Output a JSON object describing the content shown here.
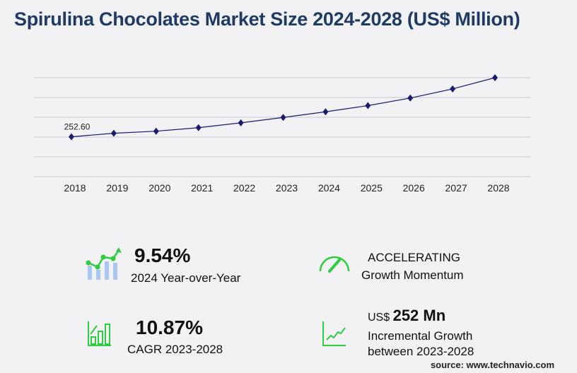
{
  "title": "Spirulina Chocolates Market Size 2024-2028 (US$ Million)",
  "chart_data": {
    "type": "line",
    "categories": [
      "2018",
      "2019",
      "2020",
      "2021",
      "2022",
      "2023",
      "2024",
      "2025",
      "2026",
      "2027",
      "2028"
    ],
    "values": [
      252.6,
      275,
      288,
      310,
      341,
      375,
      411,
      450,
      498,
      556,
      627
    ],
    "data_labels": [
      "252.60",
      "",
      "",
      "",
      "",
      "",
      "",
      "",
      "",
      "",
      ""
    ],
    "ylim": [
      0,
      627
    ],
    "grid": true,
    "line_color": "#1a1a6e",
    "marker": "diamond"
  },
  "kpis": {
    "yoy_value": "9.54%",
    "yoy_label": "2024 Year-over-Year",
    "momentum_value": "ACCELERATING",
    "momentum_label": "Growth Momentum",
    "cagr_value": "10.87%",
    "cagr_label": "CAGR 2023-2028",
    "incr_prefix": "US$",
    "incr_value": "252 Mn",
    "incr_label1": "Incremental Growth",
    "incr_label2": "between 2023-2028"
  },
  "source": "source: www.technavio.com",
  "colors": {
    "accent_green": "#2ecc40",
    "title": "#1f3b63",
    "bar_blue": "#a9c8f0"
  }
}
